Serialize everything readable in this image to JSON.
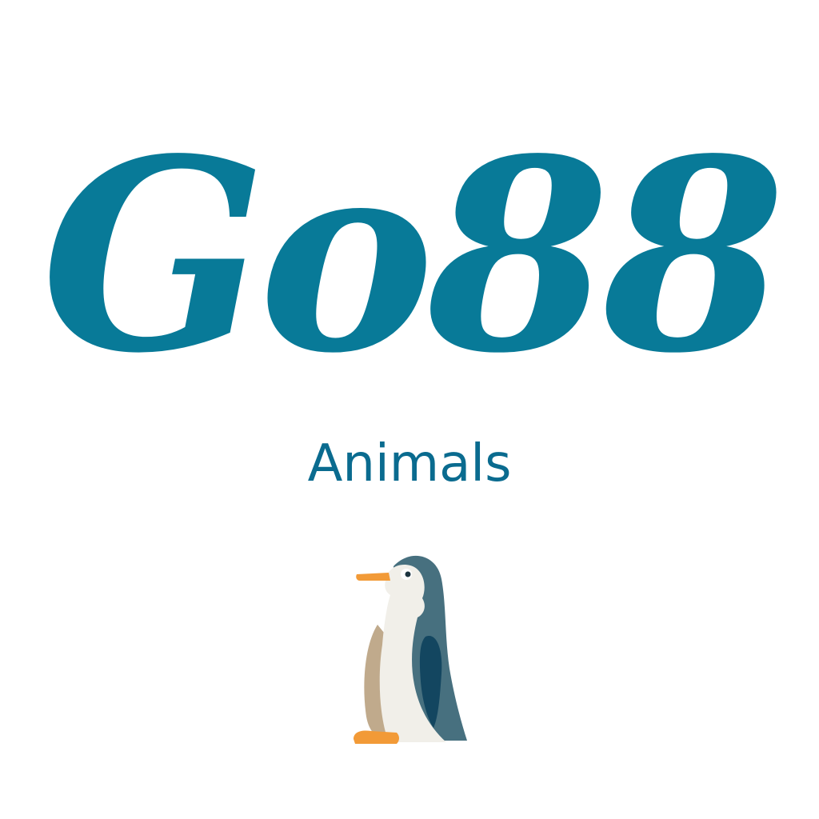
{
  "logo": {
    "text": "Go88",
    "color": "#087a98"
  },
  "category": {
    "label": "Animals",
    "color": "#0a6b8f"
  },
  "illustration": {
    "icon": "penguin-icon",
    "colors": {
      "body": "#47707f",
      "belly": "#f1efe9",
      "back_shade": "#c0aa8c",
      "flipper": "#134660",
      "beak": "#f29a37",
      "feet": "#f29a37"
    }
  }
}
